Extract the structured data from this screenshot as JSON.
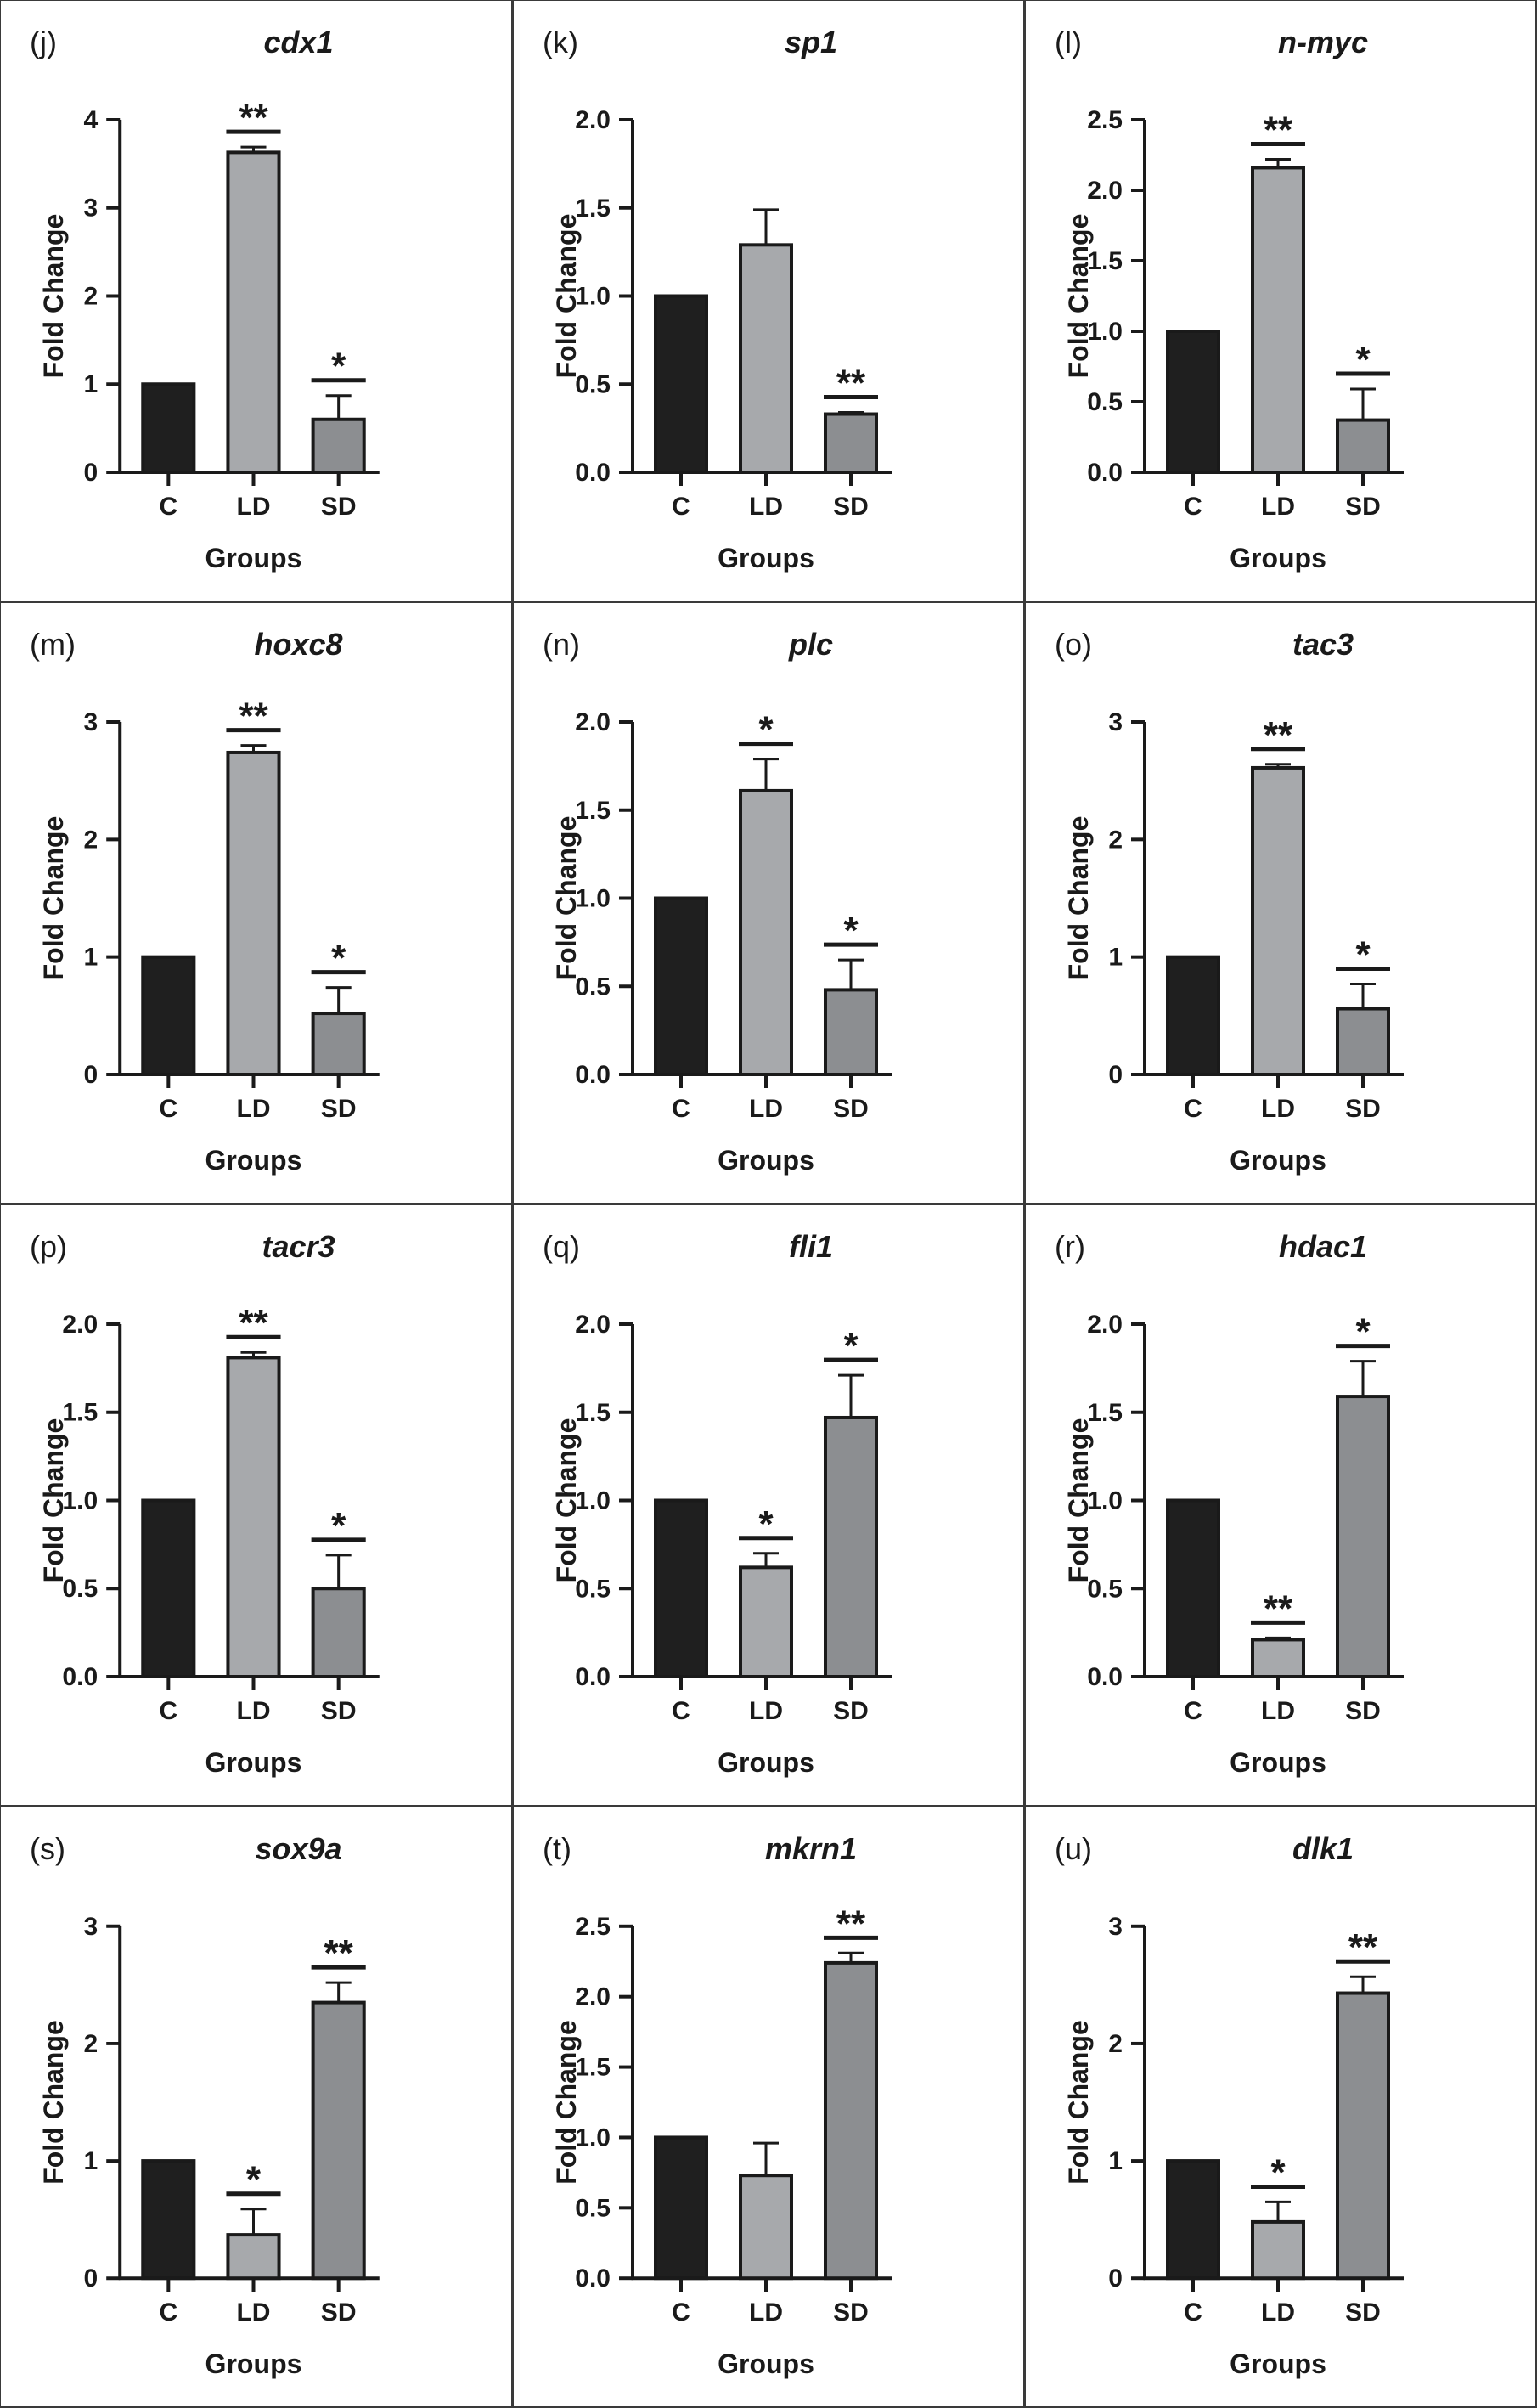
{
  "chart_data": [
    {
      "panel_label": "(j)",
      "title": "cdx1",
      "type": "bar",
      "xlabel": "Groups",
      "ylabel": "Fold Change",
      "categories": [
        "C",
        "LD",
        "SD"
      ],
      "values": [
        1,
        3.63,
        0.6
      ],
      "errors": [
        0,
        0.06,
        0.27
      ],
      "significance": [
        "",
        "**",
        "*"
      ],
      "ylim": [
        0,
        4
      ],
      "yticks": [
        "0",
        "1",
        "2",
        "3",
        "4"
      ],
      "tick_values": [
        0,
        1,
        2,
        3,
        4
      ]
    },
    {
      "panel_label": "(k)",
      "title": "sp1",
      "type": "bar",
      "xlabel": "Groups",
      "ylabel": "Fold Change",
      "categories": [
        "C",
        "LD",
        "SD"
      ],
      "values": [
        1,
        1.29,
        0.33
      ],
      "errors": [
        0,
        0.2,
        0.01
      ],
      "significance": [
        "",
        "",
        "**"
      ],
      "ylim": [
        0,
        2
      ],
      "yticks": [
        "0.0",
        "0.5",
        "1.0",
        "1.5",
        "2.0"
      ],
      "tick_values": [
        0,
        0.5,
        1,
        1.5,
        2
      ]
    },
    {
      "panel_label": "(l)",
      "title": "n-myc",
      "type": "bar",
      "xlabel": "Groups",
      "ylabel": "Fold Change",
      "categories": [
        "C",
        "LD",
        "SD"
      ],
      "values": [
        1,
        2.16,
        0.37
      ],
      "errors": [
        0,
        0.06,
        0.22
      ],
      "significance": [
        "",
        "**",
        "*"
      ],
      "ylim": [
        0,
        2.5
      ],
      "yticks": [
        "0.0",
        "0.5",
        "1.0",
        "1.5",
        "2.0",
        "2.5"
      ],
      "tick_values": [
        0,
        0.5,
        1,
        1.5,
        2,
        2.5
      ]
    },
    {
      "panel_label": "(m)",
      "title": "hoxc8",
      "type": "bar",
      "xlabel": "Groups",
      "ylabel": "Fold Change",
      "categories": [
        "C",
        "LD",
        "SD"
      ],
      "values": [
        1,
        2.74,
        0.52
      ],
      "errors": [
        0,
        0.06,
        0.22
      ],
      "significance": [
        "",
        "**",
        "*"
      ],
      "ylim": [
        0,
        3
      ],
      "yticks": [
        "0",
        "1",
        "2",
        "3"
      ],
      "tick_values": [
        0,
        1,
        2,
        3
      ]
    },
    {
      "panel_label": "(n)",
      "title": "plc",
      "type": "bar",
      "xlabel": "Groups",
      "ylabel": "Fold Change",
      "categories": [
        "C",
        "LD",
        "SD"
      ],
      "values": [
        1,
        1.61,
        0.48
      ],
      "errors": [
        0,
        0.18,
        0.17
      ],
      "significance": [
        "",
        "*",
        "*"
      ],
      "ylim": [
        0,
        2
      ],
      "yticks": [
        "0.0",
        "0.5",
        "1.0",
        "1.5",
        "2.0"
      ],
      "tick_values": [
        0,
        0.5,
        1,
        1.5,
        2
      ]
    },
    {
      "panel_label": "(o)",
      "title": "tac3",
      "type": "bar",
      "xlabel": "Groups",
      "ylabel": "Fold Change",
      "categories": [
        "C",
        "LD",
        "SD"
      ],
      "values": [
        1,
        2.61,
        0.56
      ],
      "errors": [
        0,
        0.03,
        0.21
      ],
      "significance": [
        "",
        "**",
        "*"
      ],
      "ylim": [
        0,
        3
      ],
      "yticks": [
        "0",
        "1",
        "2",
        "3"
      ],
      "tick_values": [
        0,
        1,
        2,
        3
      ]
    },
    {
      "panel_label": "(p)",
      "title": "tacr3",
      "type": "bar",
      "xlabel": "Groups",
      "ylabel": "Fold Change",
      "categories": [
        "C",
        "LD",
        "SD"
      ],
      "values": [
        1,
        1.81,
        0.5
      ],
      "errors": [
        0,
        0.03,
        0.19
      ],
      "significance": [
        "",
        "**",
        "*"
      ],
      "ylim": [
        0,
        2
      ],
      "yticks": [
        "0.0",
        "0.5",
        "1.0",
        "1.5",
        "2.0"
      ],
      "tick_values": [
        0,
        0.5,
        1,
        1.5,
        2
      ]
    },
    {
      "panel_label": "(q)",
      "title": "fli1",
      "type": "bar",
      "xlabel": "Groups",
      "ylabel": "Fold Change",
      "categories": [
        "C",
        "LD",
        "SD"
      ],
      "values": [
        1,
        0.62,
        1.47
      ],
      "errors": [
        0,
        0.08,
        0.24
      ],
      "significance": [
        "",
        "*",
        "*"
      ],
      "ylim": [
        0,
        2
      ],
      "yticks": [
        "0.0",
        "0.5",
        "1.0",
        "1.5",
        "2.0"
      ],
      "tick_values": [
        0,
        0.5,
        1,
        1.5,
        2
      ]
    },
    {
      "panel_label": "(r)",
      "title": "hdac1",
      "type": "bar",
      "xlabel": "Groups",
      "ylabel": "Fold Change",
      "categories": [
        "C",
        "LD",
        "SD"
      ],
      "values": [
        1,
        0.21,
        1.59
      ],
      "errors": [
        0,
        0.01,
        0.2
      ],
      "significance": [
        "",
        "**",
        "*"
      ],
      "ylim": [
        0,
        2
      ],
      "yticks": [
        "0.0",
        "0.5",
        "1.0",
        "1.5",
        "2.0"
      ],
      "tick_values": [
        0,
        0.5,
        1,
        1.5,
        2
      ]
    },
    {
      "panel_label": "(s)",
      "title": "sox9a",
      "type": "bar",
      "xlabel": "Groups",
      "ylabel": "Fold Change",
      "categories": [
        "C",
        "LD",
        "SD"
      ],
      "values": [
        1,
        0.37,
        2.35
      ],
      "errors": [
        0,
        0.22,
        0.17
      ],
      "significance": [
        "",
        "*",
        "**"
      ],
      "ylim": [
        0,
        3
      ],
      "yticks": [
        "0",
        "1",
        "2",
        "3"
      ],
      "tick_values": [
        0,
        1,
        2,
        3
      ]
    },
    {
      "panel_label": "(t)",
      "title": "mkrn1",
      "type": "bar",
      "xlabel": "Groups",
      "ylabel": "Fold Change",
      "categories": [
        "C",
        "LD",
        "SD"
      ],
      "values": [
        1,
        0.73,
        2.24
      ],
      "errors": [
        0,
        0.23,
        0.07
      ],
      "significance": [
        "",
        "",
        "**"
      ],
      "ylim": [
        0,
        2.5
      ],
      "yticks": [
        "0.0",
        "0.5",
        "1.0",
        "1.5",
        "2.0",
        "2.5"
      ],
      "tick_values": [
        0,
        0.5,
        1,
        1.5,
        2,
        2.5
      ]
    },
    {
      "panel_label": "(u)",
      "title": "dlk1",
      "type": "bar",
      "xlabel": "Groups",
      "ylabel": "Fold Change",
      "categories": [
        "C",
        "LD",
        "SD"
      ],
      "values": [
        1,
        0.48,
        2.43
      ],
      "errors": [
        0,
        0.17,
        0.14
      ],
      "significance": [
        "",
        "*",
        "**"
      ],
      "ylim": [
        0,
        3
      ],
      "yticks": [
        "0",
        "1",
        "2",
        "3"
      ],
      "tick_values": [
        0,
        1,
        2,
        3
      ]
    }
  ],
  "colors": {
    "C": "#1f1f1f",
    "LD": "#a7a9ac",
    "SD": "#8c8e91",
    "axis": "#1a1a1a"
  }
}
